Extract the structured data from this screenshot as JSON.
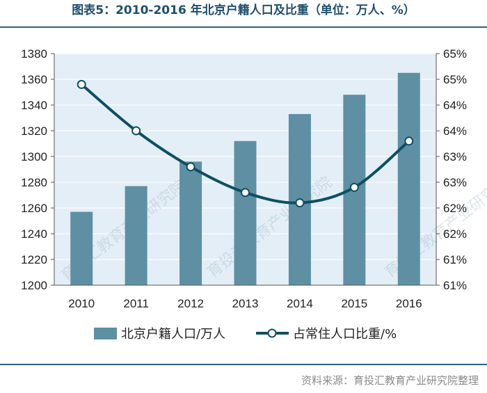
{
  "title": "图表5：2010-2016 年北京户籍人口及比重（单位：万人、%）",
  "source": "资料来源：育投汇教育产业研究院整理",
  "colors": {
    "bar": "#5f8fa3",
    "line": "#0e4f64",
    "plot_bg": "#e3eef6",
    "title": "#1f4e6d",
    "rule": "#2f5f7c"
  },
  "chart_data": {
    "type": "bar",
    "categories": [
      "2010",
      "2011",
      "2012",
      "2013",
      "2014",
      "2015",
      "2016"
    ],
    "series": [
      {
        "name": "北京户籍人口/万人",
        "type": "bar",
        "axis": "left",
        "values": [
          1257,
          1277,
          1296,
          1312,
          1333,
          1348,
          1365
        ]
      },
      {
        "name": "占常住人口比重/%",
        "type": "line",
        "axis": "right",
        "values": [
          64.4,
          63.5,
          62.8,
          62.3,
          62.1,
          62.4,
          63.3
        ]
      }
    ],
    "y_left": {
      "lim": [
        1200,
        1380
      ],
      "ticks": [
        1200,
        1220,
        1240,
        1260,
        1280,
        1300,
        1320,
        1340,
        1360,
        1380
      ],
      "tick_labels": [
        "1200",
        "1220",
        "1240",
        "1260",
        "1280",
        "1300",
        "1320",
        "1340",
        "1360",
        "1380"
      ]
    },
    "y_right": {
      "lim": [
        60.5,
        65
      ],
      "ticks": [
        60.5,
        61,
        61.5,
        62,
        62.5,
        63,
        63.5,
        64,
        64.5,
        65
      ],
      "tick_labels": [
        "61%",
        "61%",
        "62%",
        "62%",
        "63%",
        "63%",
        "64%",
        "64%",
        "65%",
        "65%"
      ]
    },
    "grid": "horizontal",
    "legend": "bottom"
  },
  "watermark": "育投汇教育产业研究院"
}
